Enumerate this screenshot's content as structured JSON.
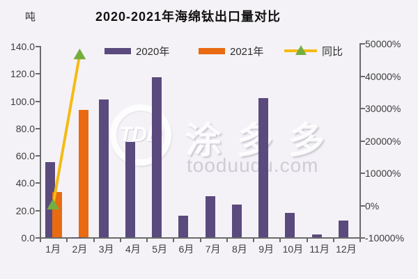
{
  "chart_data": {
    "type": "bar",
    "title": "2020-2021年海绵钛出口量对比",
    "unit_label": "吨",
    "categories": [
      "1月",
      "2月",
      "3月",
      "4月",
      "5月",
      "6月",
      "7月",
      "8月",
      "9月",
      "10月",
      "11月",
      "12月"
    ],
    "series": [
      {
        "name": "2020年",
        "kind": "bar",
        "color": "#5b4a7d",
        "values": [
          55,
          0.2,
          101,
          70,
          117,
          16,
          30,
          24,
          102,
          18,
          2,
          12
        ]
      },
      {
        "name": "2021年",
        "kind": "bar",
        "color": "#e96a10",
        "values": [
          33,
          93,
          null,
          null,
          null,
          null,
          null,
          null,
          null,
          null,
          null,
          null
        ]
      },
      {
        "name": "同比",
        "kind": "line",
        "axis": "right",
        "color": "#f5bb13",
        "marker": "triangle",
        "marker_color": "#76ad3f",
        "values": [
          -40,
          46400,
          null,
          null,
          null,
          null,
          null,
          null,
          null,
          null,
          null,
          null
        ]
      }
    ],
    "left_axis": {
      "min": 0,
      "max": 140,
      "tick_labels": [
        "140.0",
        "120.0",
        "100.0",
        "80.0",
        "60.0",
        "40.0",
        "20.0",
        "0.0"
      ]
    },
    "right_axis": {
      "min": -10000,
      "max": 50000,
      "tick_labels": [
        "50000%",
        "40000%",
        "30000%",
        "20000%",
        "10000%",
        "0%",
        "-10000%"
      ]
    },
    "legend_position": "top",
    "grid": false
  },
  "watermark": {
    "logo": "TDD",
    "brand": "涂多多",
    "site": "tooduudu.com"
  }
}
